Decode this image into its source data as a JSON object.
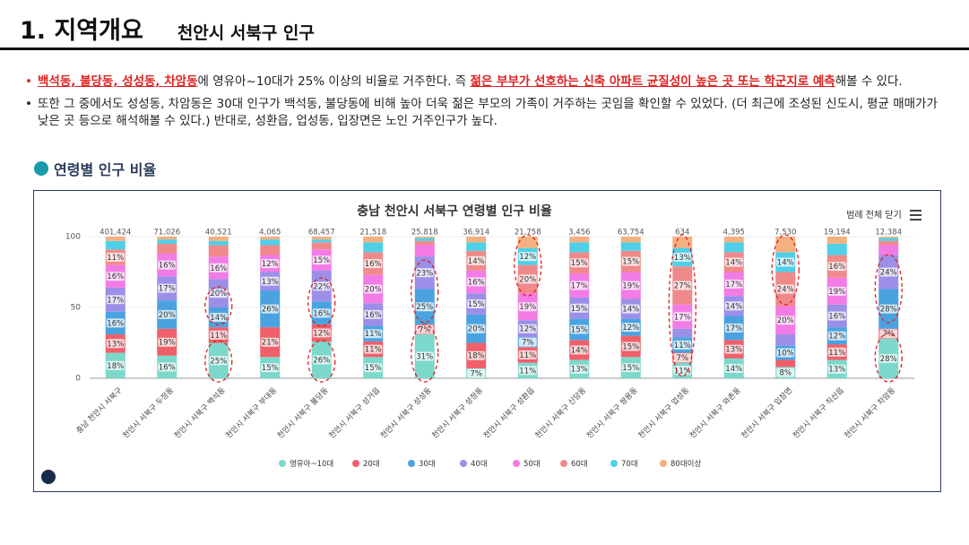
{
  "header": {
    "title": "1. 지역개요",
    "subtitle": "천안시 서북구 인구"
  },
  "bullets": [
    {
      "parts": [
        {
          "text": "백석동, 불당동, 성성동, 차암동",
          "highlight": true
        },
        {
          "text": "에 영유아~10대가 25% 이상의 비율로 거주한다. 즉 ",
          "highlight": false
        },
        {
          "text": "젊은 부부가 선호하는 신축 아파트 균질성이 높은 곳 또는 학군지로 예측",
          "highlight": true
        },
        {
          "text": "해볼 수 있다.",
          "highlight": false
        }
      ]
    },
    {
      "parts": [
        {
          "text": "또한 그 중에서도 성성동, 차암동은 30대 인구가 백석동, 불당동에 비해 높아 더욱 젊은 부모의 가족이 거주하는 곳임을 확인할 수 있었다. (더 최근에 조성된 신도시, 평균 매매가가 낮은 곳 등으로 해석해볼 수 있다.) 반대로, 성환읍, 업성동, 입장면은 노인 거주인구가 높다.",
          "highlight": false
        }
      ]
    }
  ],
  "section_title": "연령별 인구 비율",
  "chart_data": {
    "type": "stacked_bar",
    "title": "충남 천안시 서북구 연령별 인구 비율",
    "button": "범례 전체 닫기",
    "categories": [
      "충남 천안시 서북구",
      "천안시 서북구 두정동",
      "천안시 서북구 백석동",
      "천안시 서북구 부대동",
      "천안시 서북구 불당동",
      "천안시 서북구 성거읍",
      "천안시 서북구 성성동",
      "천안시 서북구 성정동",
      "천안시 서북구 성환읍",
      "천안시 서북구 신당동",
      "천안시 서북구 쌍용동",
      "천안시 서북구 업성동",
      "천안시 서북구 와촌동",
      "천안시 서북구 입장면",
      "천안시 서북구 직산읍",
      "천안시 서북구 차암동"
    ],
    "totals": [
      {
        "value": 401424,
        "label": "401,424"
      },
      {
        "value": 71026,
        "label": "71,026"
      },
      {
        "value": 40521,
        "label": "40,521"
      },
      {
        "value": 4065,
        "label": "4,065"
      },
      {
        "value": 68457,
        "label": "68,457"
      },
      {
        "value": 21518,
        "label": "21,518"
      },
      {
        "value": 25818,
        "label": "25,818"
      },
      {
        "value": 36914,
        "label": "36,914"
      },
      {
        "value": 21758,
        "label": "21,758"
      },
      {
        "value": 3456,
        "label": "3,456"
      },
      {
        "value": 63754,
        "label": "63,754"
      },
      {
        "value": 634,
        "label": "634"
      },
      {
        "value": 4395,
        "label": "4,395"
      },
      {
        "value": 7530,
        "label": "7,530"
      },
      {
        "value": 19194,
        "label": "19,194"
      },
      {
        "value": 12384,
        "label": "12,384"
      }
    ],
    "ylim": [
      0,
      100
    ],
    "yticks": [
      0,
      50,
      100
    ],
    "grid": true,
    "series": [
      {
        "name": "영유아~10대",
        "color": "#7dd8cc",
        "values": [
          18,
          16,
          25,
          15,
          26,
          15,
          31,
          7,
          11,
          13,
          15,
          11,
          14,
          8,
          13,
          28
        ],
        "value_labels": [
          "18%",
          "16%",
          "25%",
          "15%",
          "26%",
          "15%",
          "31%",
          "7%",
          "11%",
          "13%",
          "15%",
          "11%",
          "14%",
          "8%",
          "13%",
          "28%"
        ]
      },
      {
        "name": "20대",
        "color": "#f0606a",
        "values": [
          13,
          19,
          11,
          21,
          12,
          11,
          7,
          18,
          11,
          14,
          15,
          7,
          13,
          5,
          11,
          7
        ],
        "value_labels": [
          "13%",
          "19%",
          "11%",
          "21%",
          "12%",
          "11%",
          "7%",
          "18%",
          "11%",
          "14%",
          "15%",
          "7%",
          "13%",
          null,
          "11%",
          "7%"
        ]
      },
      {
        "name": "30대",
        "color": "#4aa3e0",
        "values": [
          16,
          20,
          14,
          26,
          16,
          11,
          25,
          20,
          7,
          15,
          12,
          11,
          17,
          10,
          12,
          28
        ],
        "value_labels": [
          "16%",
          "20%",
          "14%",
          "26%",
          "16%",
          "11%",
          "25%",
          "20%",
          "7%",
          "15%",
          "12%",
          "11%",
          "17%",
          "10%",
          "12%",
          "28%"
        ]
      },
      {
        "name": "40대",
        "color": "#9b8fe8",
        "values": [
          17,
          17,
          20,
          13,
          22,
          16,
          23,
          15,
          12,
          15,
          14,
          6,
          14,
          8,
          16,
          24
        ],
        "value_labels": [
          "17%",
          "17%",
          "20%",
          "13%",
          "22%",
          "16%",
          "23%",
          "15%",
          "12%",
          "15%",
          "14%",
          null,
          "14%",
          null,
          "16%",
          "24%"
        ]
      },
      {
        "name": "50대",
        "color": "#f27be6",
        "values": [
          16,
          16,
          16,
          12,
          15,
          20,
          8,
          16,
          19,
          17,
          19,
          17,
          17,
          20,
          19,
          7
        ],
        "value_labels": [
          "16%",
          "16%",
          "16%",
          "12%",
          "15%",
          "20%",
          null,
          "16%",
          "19%",
          "17%",
          "19%",
          "17%",
          "17%",
          "20%",
          "19%",
          null
        ]
      },
      {
        "name": "60대",
        "color": "#f08a8a",
        "values": [
          11,
          7,
          8,
          7,
          5,
          16,
          3,
          14,
          20,
          15,
          15,
          27,
          14,
          24,
          16,
          3
        ],
        "value_labels": [
          "11%",
          null,
          null,
          null,
          null,
          "16%",
          null,
          "14%",
          "20%",
          "15%",
          "15%",
          "27%",
          "14%",
          "24%",
          "16%",
          null
        ]
      },
      {
        "name": "70대",
        "color": "#4fd0e8",
        "values": [
          6,
          3,
          3,
          4,
          2,
          7,
          2,
          6,
          12,
          7,
          6,
          13,
          7,
          14,
          8,
          2
        ],
        "value_labels": [
          null,
          null,
          null,
          null,
          null,
          null,
          null,
          null,
          "12%",
          null,
          null,
          "13%",
          null,
          "14%",
          null,
          null
        ]
      },
      {
        "name": "80대이상",
        "color": "#f5b080",
        "values": [
          3,
          2,
          3,
          2,
          2,
          4,
          1,
          4,
          8,
          4,
          4,
          8,
          4,
          11,
          5,
          1
        ]
      }
    ]
  }
}
